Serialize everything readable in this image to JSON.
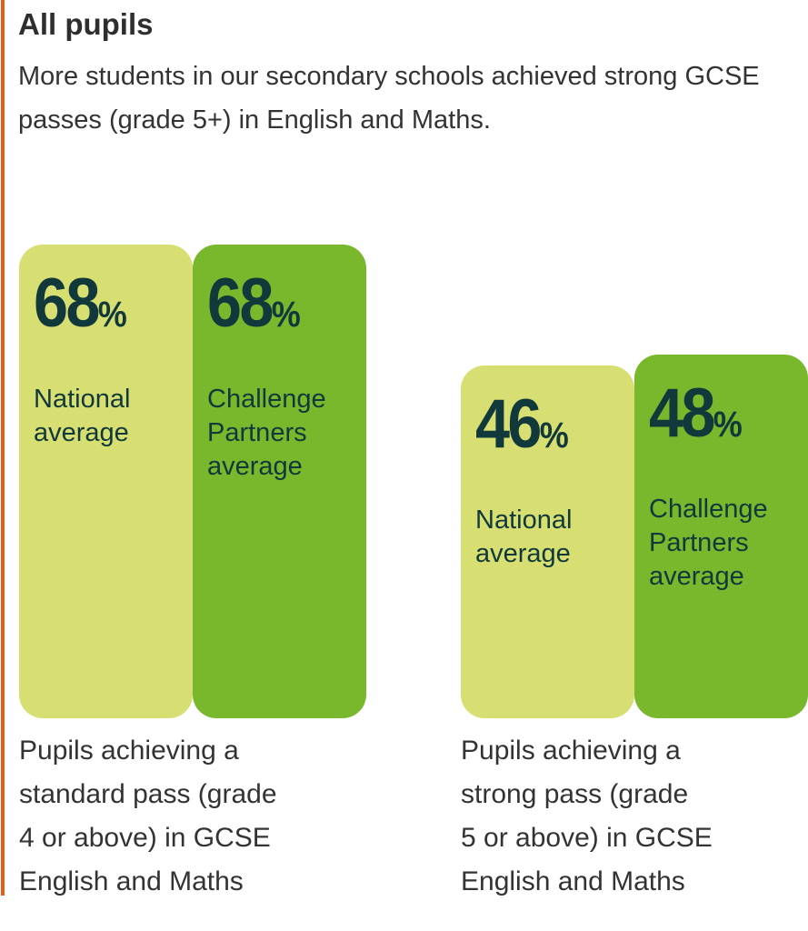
{
  "title": "All pupils",
  "subtitle": "More students in our secondary schools achieved strong GCSE passes (grade 5+) in English and Maths.",
  "colors": {
    "national": "#d8df72",
    "challenge_partners": "#79b82c",
    "text": "#11383a",
    "accent_rule": "#e0601c"
  },
  "chart_data": {
    "type": "bar",
    "title": "All pupils",
    "categories": [
      "Pupils achieving a standard pass (grade 4 or above) in GCSE English and Maths",
      "Pupils achieving a strong pass (grade 5 or above) in GCSE English and Maths"
    ],
    "series": [
      {
        "name": "National average",
        "values": [
          68,
          46
        ]
      },
      {
        "name": "Challenge Partners average",
        "values": [
          68,
          48
        ]
      }
    ],
    "unit": "%",
    "groups": [
      {
        "caption": "Pupils achieving a\nstandard pass (grade\n4 or above) in GCSE\nEnglish and Maths",
        "bars": [
          {
            "value": "68",
            "unit": "%",
            "label": "National\naverage"
          },
          {
            "value": "68",
            "unit": "%",
            "label": "Challenge\nPartners\naverage"
          }
        ]
      },
      {
        "caption": "Pupils achieving a\nstrong pass (grade\n5 or above) in GCSE\nEnglish and Maths",
        "bars": [
          {
            "value": "46",
            "unit": "%",
            "label": "National\naverage"
          },
          {
            "value": "48",
            "unit": "%",
            "label": "Challenge\nPartners\naverage"
          }
        ]
      }
    ]
  }
}
